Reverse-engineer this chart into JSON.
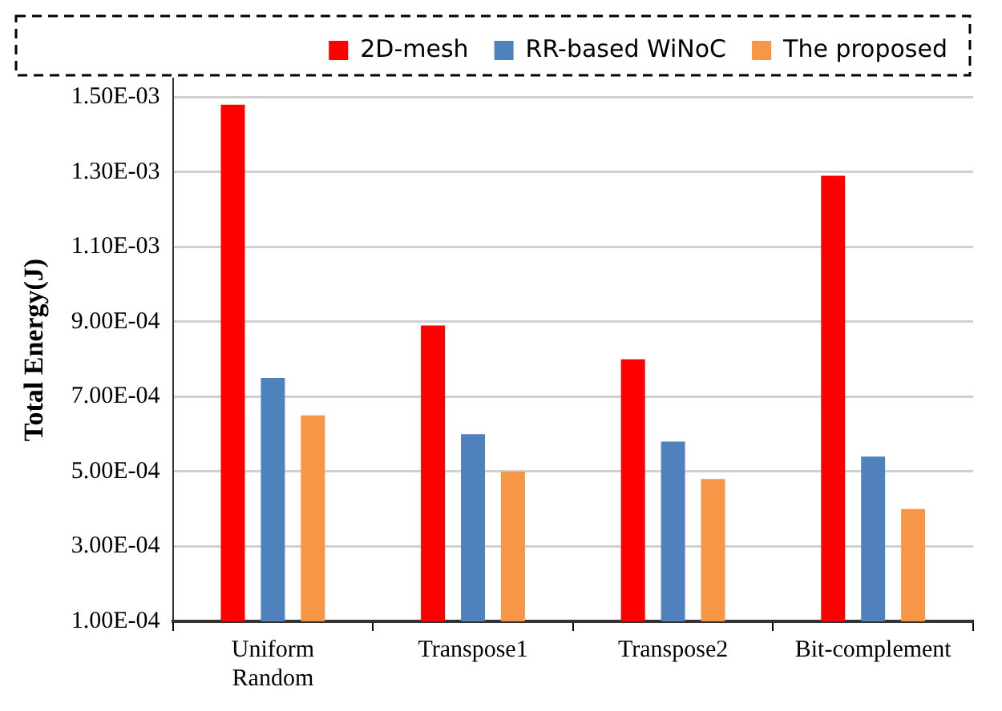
{
  "chart_data": {
    "type": "bar",
    "ylabel": "Total Energy(J)",
    "categories": [
      "Uniform Random",
      "Transpose1",
      "Transpose2",
      "Bit-complement"
    ],
    "series": [
      {
        "name": "2D-mesh",
        "color": "#ff0000",
        "values": [
          0.00148,
          0.00089,
          0.0008,
          0.00129
        ]
      },
      {
        "name": "RR-based WiNoC",
        "color": "#4f81bd",
        "values": [
          0.00075,
          0.0006,
          0.00058,
          0.00054
        ]
      },
      {
        "name": "The proposed",
        "color": "#f79646",
        "values": [
          0.00065,
          0.0005,
          0.00048,
          0.0004
        ]
      }
    ],
    "ylim": [
      0.0001,
      0.00155
    ],
    "yticks": [
      {
        "value": 0.0001,
        "label": "1.00E-04"
      },
      {
        "value": 0.0003,
        "label": "3.00E-04"
      },
      {
        "value": 0.0005,
        "label": "5.00E-04"
      },
      {
        "value": 0.0007,
        "label": "7.00E-04"
      },
      {
        "value": 0.0009,
        "label": "9.00E-04"
      },
      {
        "value": 0.0011,
        "label": "1.10E-03"
      },
      {
        "value": 0.0013,
        "label": "1.30E-03"
      },
      {
        "value": 0.0015,
        "label": "1.50E-03"
      }
    ],
    "grid": "y",
    "legend": "top right"
  }
}
